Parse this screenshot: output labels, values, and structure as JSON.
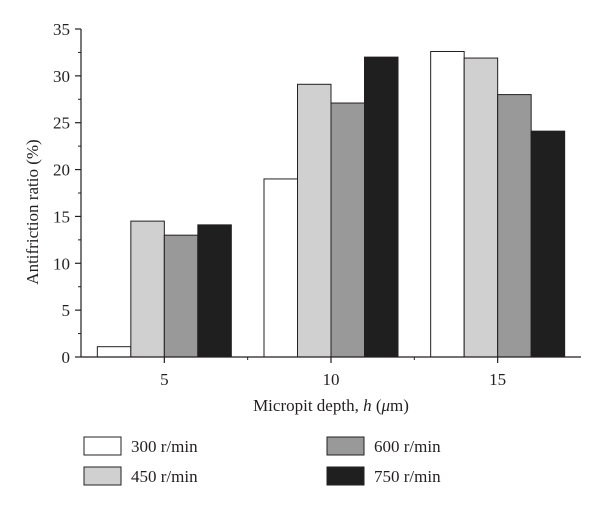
{
  "chart_data": {
    "type": "bar",
    "title": "",
    "xlabel": "Micropit depth, h (μm)",
    "xlabel_parts": [
      "Micropit depth, ",
      "h",
      " (",
      "μ",
      "m)"
    ],
    "ylabel": "Antifriction ratio (%)",
    "categories": [
      "5",
      "10",
      "15"
    ],
    "ylim": [
      0,
      35
    ],
    "yticks": [
      0,
      5,
      10,
      15,
      20,
      25,
      30,
      35
    ],
    "grid": false,
    "legend_position": "bottom",
    "series": [
      {
        "name": "300 r/min",
        "color": "#ffffff",
        "values": [
          1.1,
          19.0,
          32.6
        ]
      },
      {
        "name": "450 r/min",
        "color": "#d0d0d0",
        "values": [
          14.5,
          29.1,
          31.9
        ]
      },
      {
        "name": "600 r/min",
        "color": "#999999",
        "values": [
          13.0,
          27.1,
          28.0
        ]
      },
      {
        "name": "750 r/min",
        "color": "#1f1f1f",
        "values": [
          14.1,
          32.0,
          24.1
        ]
      }
    ]
  }
}
